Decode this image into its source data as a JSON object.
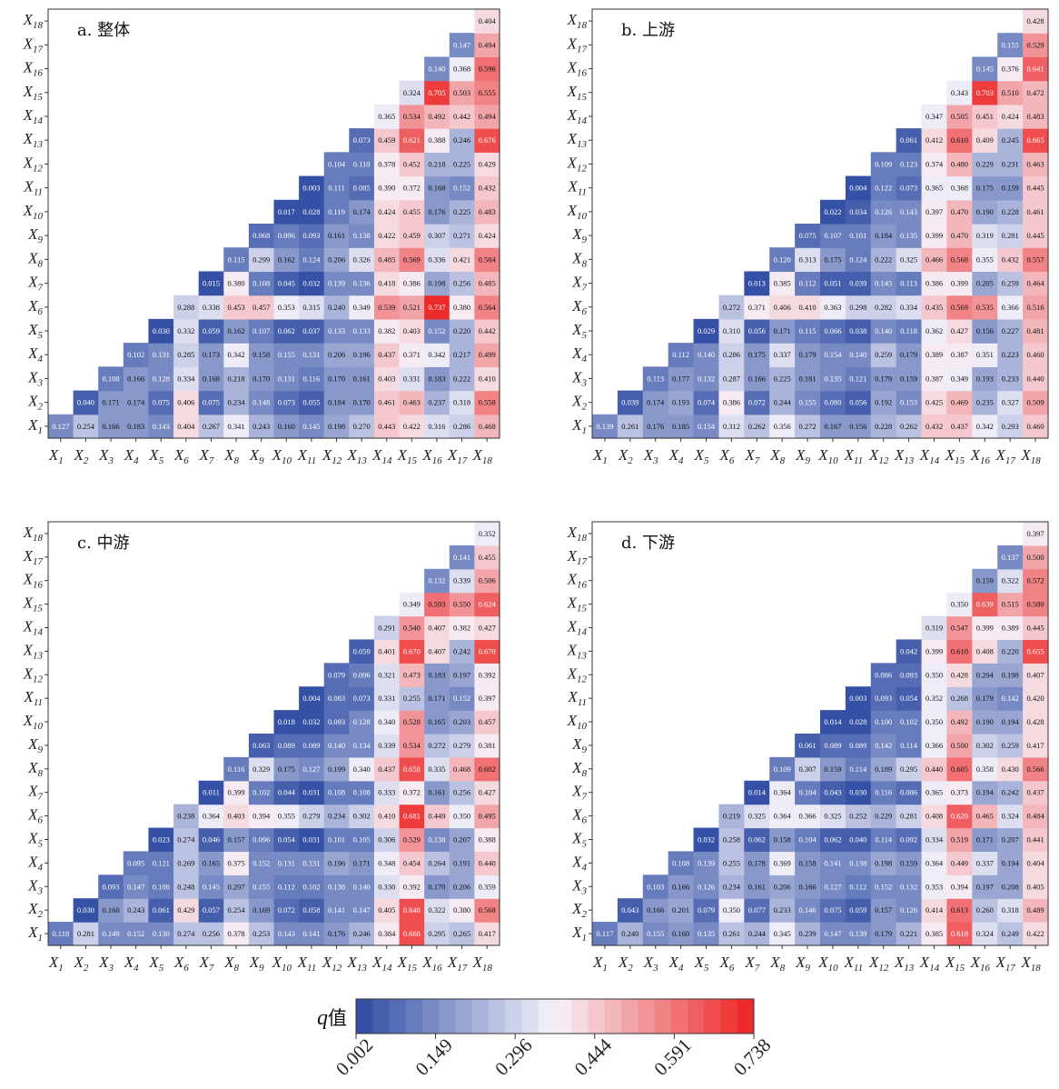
{
  "chart_data": [
    {
      "type": "heatmap",
      "title": "a. 整体",
      "x_labels": [
        "X1",
        "X2",
        "X3",
        "X4",
        "X5",
        "X6",
        "X7",
        "X8",
        "X9",
        "X10",
        "X11",
        "X12",
        "X13",
        "X14",
        "X15",
        "X16",
        "X17",
        "X18"
      ],
      "rows": [
        [
          0.127,
          0.254,
          0.166,
          0.183,
          0.143,
          0.404,
          0.267,
          0.341,
          0.243,
          0.16,
          0.145,
          0.198,
          0.27,
          0.443,
          0.422,
          0.316,
          0.286,
          0.468
        ],
        [
          0.04,
          0.171,
          0.174,
          0.075,
          0.406,
          0.075,
          0.234,
          0.148,
          0.073,
          0.055,
          0.184,
          0.17,
          0.461,
          0.463,
          0.237,
          0.318,
          0.558
        ],
        [
          0.108,
          0.166,
          0.128,
          0.334,
          0.168,
          0.218,
          0.17,
          0.131,
          0.116,
          0.17,
          0.161,
          0.403,
          0.331,
          0.183,
          0.222,
          0.41
        ],
        [
          0.102,
          0.131,
          0.285,
          0.173,
          0.342,
          0.158,
          0.155,
          0.131,
          0.206,
          0.196,
          0.437,
          0.371,
          0.342,
          0.217,
          0.499
        ],
        [
          0.03,
          0.332,
          0.059,
          0.162,
          0.107,
          0.062,
          0.037,
          0.133,
          0.133,
          0.382,
          0.403,
          0.152,
          0.22,
          0.442
        ],
        [
          0.288,
          0.338,
          0.453,
          0.457,
          0.353,
          0.315,
          0.24,
          0.349,
          0.539,
          0.521,
          0.737,
          0.38,
          0.564
        ],
        [
          0.015,
          0.38,
          0.108,
          0.045,
          0.032,
          0.139,
          0.136,
          0.418,
          0.386,
          0.198,
          0.256,
          0.485
        ],
        [
          0.115,
          0.299,
          0.162,
          0.124,
          0.206,
          0.326,
          0.485,
          0.569,
          0.336,
          0.421,
          0.584
        ],
        [
          0.068,
          0.096,
          0.093,
          0.161,
          0.138,
          0.422,
          0.459,
          0.307,
          0.271,
          0.424
        ],
        [
          0.017,
          0.028,
          0.119,
          0.174,
          0.424,
          0.455,
          0.176,
          0.225,
          0.483
        ],
        [
          0.003,
          0.111,
          0.085,
          0.39,
          0.372,
          0.168,
          0.152,
          0.432
        ],
        [
          0.104,
          0.11,
          0.378,
          0.452,
          0.218,
          0.225,
          0.429
        ],
        [
          0.073,
          0.459,
          0.621,
          0.388,
          0.246,
          0.676
        ],
        [
          0.365,
          0.534,
          0.492,
          0.442,
          0.494
        ],
        [
          0.324,
          0.705,
          0.503,
          0.555
        ],
        [
          0.14,
          0.368,
          0.596
        ],
        [
          0.147,
          0.494
        ],
        [
          0.404
        ]
      ]
    },
    {
      "type": "heatmap",
      "title": "b. 上游",
      "x_labels": [
        "X1",
        "X2",
        "X3",
        "X4",
        "X5",
        "X6",
        "X7",
        "X8",
        "X9",
        "X10",
        "X11",
        "X12",
        "X13",
        "X14",
        "X15",
        "X16",
        "X17",
        "X18"
      ],
      "rows": [
        [
          0.139,
          0.261,
          0.176,
          0.185,
          0.154,
          0.312,
          0.262,
          0.356,
          0.272,
          0.167,
          0.156,
          0.228,
          0.262,
          0.432,
          0.437,
          0.342,
          0.293,
          0.46
        ],
        [
          0.039,
          0.174,
          0.193,
          0.074,
          0.386,
          0.072,
          0.244,
          0.155,
          0.08,
          0.056,
          0.192,
          0.153,
          0.425,
          0.469,
          0.235,
          0.327,
          0.509
        ],
        [
          0.113,
          0.177,
          0.132,
          0.287,
          0.166,
          0.225,
          0.181,
          0.135,
          0.121,
          0.179,
          0.159,
          0.387,
          0.349,
          0.193,
          0.233,
          0.44
        ],
        [
          0.112,
          0.14,
          0.286,
          0.175,
          0.337,
          0.179,
          0.154,
          0.14,
          0.259,
          0.179,
          0.389,
          0.387,
          0.351,
          0.223,
          0.46
        ],
        [
          0.029,
          0.31,
          0.056,
          0.171,
          0.115,
          0.066,
          0.038,
          0.14,
          0.118,
          0.362,
          0.427,
          0.156,
          0.227,
          0.481
        ],
        [
          0.272,
          0.371,
          0.406,
          0.41,
          0.363,
          0.298,
          0.282,
          0.334,
          0.435,
          0.569,
          0.535,
          0.366,
          0.516
        ],
        [
          0.013,
          0.385,
          0.112,
          0.051,
          0.039,
          0.145,
          0.113,
          0.386,
          0.399,
          0.205,
          0.259,
          0.464
        ],
        [
          0.12,
          0.313,
          0.175,
          0.124,
          0.222,
          0.325,
          0.466,
          0.568,
          0.355,
          0.432,
          0.557
        ],
        [
          0.075,
          0.107,
          0.101,
          0.184,
          0.135,
          0.399,
          0.47,
          0.319,
          0.281,
          0.445
        ],
        [
          0.022,
          0.034,
          0.126,
          0.143,
          0.397,
          0.47,
          0.19,
          0.228,
          0.461
        ],
        [
          0.004,
          0.122,
          0.073,
          0.365,
          0.368,
          0.175,
          0.159,
          0.445
        ],
        [
          0.109,
          0.123,
          0.374,
          0.48,
          0.229,
          0.231,
          0.463
        ],
        [
          0.061,
          0.412,
          0.61,
          0.409,
          0.245,
          0.665
        ],
        [
          0.347,
          0.505,
          0.451,
          0.424,
          0.483
        ],
        [
          0.343,
          0.703,
          0.51,
          0.472
        ],
        [
          0.145,
          0.376,
          0.641
        ],
        [
          0.155,
          0.529
        ],
        [
          0.428
        ]
      ]
    },
    {
      "type": "heatmap",
      "title": "c. 中游",
      "x_labels": [
        "X1",
        "X2",
        "X3",
        "X4",
        "X5",
        "X6",
        "X7",
        "X8",
        "X9",
        "X10",
        "X11",
        "X12",
        "X13",
        "X14",
        "X15",
        "X16",
        "X17",
        "X18"
      ],
      "rows": [
        [
          0.118,
          0.281,
          0.149,
          0.152,
          0.13,
          0.274,
          0.256,
          0.378,
          0.253,
          0.143,
          0.141,
          0.176,
          0.246,
          0.384,
          0.668,
          0.295,
          0.265,
          0.417
        ],
        [
          0.03,
          0.16,
          0.243,
          0.061,
          0.429,
          0.057,
          0.254,
          0.169,
          0.072,
          0.058,
          0.141,
          0.147,
          0.405,
          0.648,
          0.322,
          0.38,
          0.568
        ],
        [
          0.093,
          0.147,
          0.108,
          0.248,
          0.145,
          0.207,
          0.155,
          0.112,
          0.102,
          0.138,
          0.14,
          0.33,
          0.392,
          0.17,
          0.206,
          0.359
        ],
        [
          0.095,
          0.121,
          0.269,
          0.165,
          0.375,
          0.152,
          0.131,
          0.131,
          0.196,
          0.171,
          0.348,
          0.454,
          0.264,
          0.191,
          0.44
        ],
        [
          0.023,
          0.274,
          0.046,
          0.157,
          0.096,
          0.054,
          0.031,
          0.101,
          0.105,
          0.306,
          0.529,
          0.138,
          0.207,
          0.388
        ],
        [
          0.238,
          0.364,
          0.403,
          0.394,
          0.355,
          0.279,
          0.234,
          0.302,
          0.41,
          0.681,
          0.449,
          0.35,
          0.495
        ],
        [
          0.011,
          0.399,
          0.102,
          0.044,
          0.031,
          0.108,
          0.108,
          0.333,
          0.372,
          0.161,
          0.256,
          0.427
        ],
        [
          0.116,
          0.329,
          0.175,
          0.127,
          0.199,
          0.34,
          0.437,
          0.658,
          0.335,
          0.468,
          0.602
        ],
        [
          0.063,
          0.089,
          0.089,
          0.14,
          0.134,
          0.339,
          0.534,
          0.272,
          0.279,
          0.381
        ],
        [
          0.018,
          0.032,
          0.093,
          0.128,
          0.34,
          0.528,
          0.165,
          0.203,
          0.457
        ],
        [
          0.004,
          0.083,
          0.073,
          0.331,
          0.255,
          0.171,
          0.152,
          0.397
        ],
        [
          0.079,
          0.096,
          0.321,
          0.473,
          0.183,
          0.197,
          0.392
        ],
        [
          0.059,
          0.401,
          0.67,
          0.407,
          0.242,
          0.67
        ],
        [
          0.291,
          0.54,
          0.407,
          0.382,
          0.427
        ],
        [
          0.349,
          0.593,
          0.55,
          0.624
        ],
        [
          0.132,
          0.339,
          0.506
        ],
        [
          0.141,
          0.455
        ],
        [
          0.352
        ]
      ]
    },
    {
      "type": "heatmap",
      "title": "d. 下游",
      "x_labels": [
        "X1",
        "X2",
        "X3",
        "X4",
        "X5",
        "X6",
        "X7",
        "X8",
        "X9",
        "X10",
        "X11",
        "X12",
        "X13",
        "X14",
        "X15",
        "X16",
        "X17",
        "X18"
      ],
      "rows": [
        [
          0.117,
          0.24,
          0.155,
          0.16,
          0.135,
          0.261,
          0.244,
          0.345,
          0.239,
          0.147,
          0.139,
          0.179,
          0.221,
          0.385,
          0.618,
          0.324,
          0.249,
          0.422
        ],
        [
          0.043,
          0.166,
          0.201,
          0.079,
          0.35,
          0.077,
          0.233,
          0.146,
          0.075,
          0.059,
          0.157,
          0.126,
          0.414,
          0.613,
          0.26,
          0.318,
          0.489
        ],
        [
          0.103,
          0.166,
          0.126,
          0.234,
          0.161,
          0.206,
          0.166,
          0.127,
          0.112,
          0.152,
          0.132,
          0.353,
          0.394,
          0.197,
          0.208,
          0.405
        ],
        [
          0.108,
          0.139,
          0.255,
          0.178,
          0.369,
          0.158,
          0.141,
          0.138,
          0.198,
          0.159,
          0.364,
          0.449,
          0.337,
          0.194,
          0.404
        ],
        [
          0.032,
          0.258,
          0.062,
          0.158,
          0.104,
          0.062,
          0.04,
          0.114,
          0.092,
          0.334,
          0.519,
          0.171,
          0.207,
          0.441
        ],
        [
          0.219,
          0.325,
          0.364,
          0.366,
          0.325,
          0.252,
          0.229,
          0.281,
          0.408,
          0.62,
          0.465,
          0.324,
          0.484
        ],
        [
          0.014,
          0.364,
          0.104,
          0.043,
          0.03,
          0.116,
          0.086,
          0.365,
          0.373,
          0.194,
          0.242,
          0.437
        ],
        [
          0.109,
          0.307,
          0.159,
          0.114,
          0.189,
          0.295,
          0.44,
          0.605,
          0.358,
          0.43,
          0.566
        ],
        [
          0.061,
          0.089,
          0.089,
          0.142,
          0.114,
          0.366,
          0.5,
          0.302,
          0.259,
          0.417
        ],
        [
          0.014,
          0.028,
          0.1,
          0.102,
          0.35,
          0.492,
          0.19,
          0.194,
          0.428
        ],
        [
          0.003,
          0.093,
          0.054,
          0.352,
          0.268,
          0.179,
          0.142,
          0.42
        ],
        [
          0.086,
          0.093,
          0.35,
          0.428,
          0.204,
          0.198,
          0.407
        ],
        [
          0.042,
          0.399,
          0.61,
          0.408,
          0.22,
          0.655
        ],
        [
          0.319,
          0.547,
          0.399,
          0.389,
          0.445
        ],
        [
          0.35,
          0.639,
          0.515,
          0.58
        ],
        [
          0.159,
          0.322,
          0.572
        ],
        [
          0.137,
          0.5
        ],
        [
          0.397
        ]
      ]
    }
  ],
  "colorbar": {
    "label": "q值",
    "min": 0.002,
    "max": 0.738,
    "ticks": [
      "0.002",
      "0.149",
      "0.296",
      "0.444",
      "0.591",
      "0.738"
    ],
    "colors": {
      "low": "#3451a6",
      "mid": "#f6f4fb",
      "high": "#ed2a2a"
    }
  }
}
